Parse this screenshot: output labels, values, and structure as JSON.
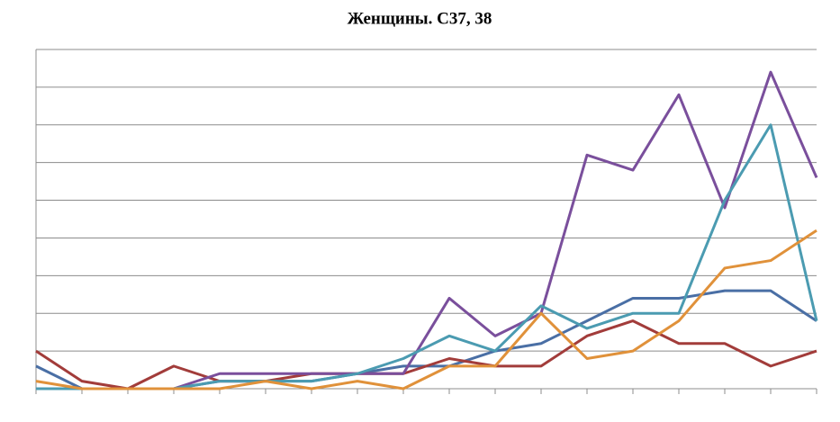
{
  "chart_data": {
    "type": "line",
    "title": "Женщины. C37, 38",
    "categories": [
      null,
      null,
      null,
      null,
      null,
      null,
      null,
      null,
      null,
      null,
      null,
      null,
      null,
      null,
      null,
      null,
      null,
      null
    ],
    "series": [
      {
        "color": "#4a6fa5",
        "values": [
          0.6,
          0,
          0,
          0,
          0.2,
          0.2,
          0.2,
          0.4,
          0.6,
          0.6,
          1.0,
          1.2,
          1.8,
          2.4,
          2.4,
          2.6,
          2.6,
          1.8
        ]
      },
      {
        "color": "#a23c3a",
        "values": [
          1.0,
          0.2,
          0,
          0.6,
          0.2,
          0.2,
          0.4,
          0.4,
          0.4,
          0.8,
          0.6,
          0.6,
          1.4,
          1.8,
          1.2,
          1.2,
          0.6,
          1.0
        ]
      },
      {
        "color": "#7a4f9c",
        "values": [
          null,
          null,
          null,
          0,
          0.4,
          0.4,
          0.4,
          0.4,
          0.4,
          2.4,
          1.4,
          2.0,
          6.2,
          5.8,
          7.8,
          4.8,
          8.4,
          5.6
        ]
      },
      {
        "color": "#4b9bb1",
        "values": [
          0,
          0,
          0,
          0,
          0.2,
          0.2,
          0.2,
          0.4,
          0.8,
          1.4,
          1.0,
          2.2,
          1.6,
          2.0,
          2.0,
          5.0,
          7.0,
          1.8
        ]
      },
      {
        "color": "#e0913a",
        "values": [
          0.2,
          0,
          0,
          0,
          0,
          0.2,
          0,
          0.2,
          0,
          0.6,
          0.6,
          2.0,
          0.8,
          1.0,
          1.8,
          3.2,
          3.4,
          4.2
        ]
      }
    ],
    "ylim": [
      0,
      9
    ],
    "yticks": [
      0,
      1,
      2,
      3,
      4,
      5,
      6,
      7,
      8,
      9
    ],
    "grid": true
  }
}
